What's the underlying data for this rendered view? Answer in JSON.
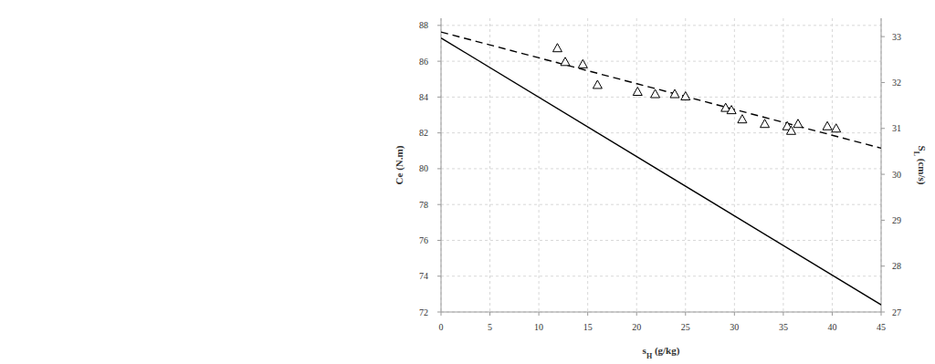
{
  "chart_data": {
    "type": "line",
    "xlabel": "sH (g/kg)",
    "ylabel": "Ce (N.m)",
    "y2label": "SL (cm/s)",
    "xlim": [
      0,
      45
    ],
    "xticks": [
      0,
      5,
      10,
      15,
      20,
      25,
      30,
      35,
      40,
      45
    ],
    "ylim": [
      72,
      88.4
    ],
    "yticks": [
      72,
      74,
      76,
      78,
      80,
      82,
      84,
      86,
      88
    ],
    "y2lim": [
      27,
      33.4
    ],
    "y2ticks": [
      27,
      28,
      29,
      30,
      31,
      32,
      33
    ],
    "grid": true,
    "series": [
      {
        "type": "line",
        "line_style": "solid",
        "color": "#000000",
        "x": [
          0,
          45
        ],
        "values": [
          87.3,
          72.4
        ]
      },
      {
        "type": "line",
        "line_style": "dashed",
        "color": "#000000",
        "axis": "y2",
        "x": [
          0,
          45
        ],
        "values": [
          33.1,
          30.57
        ]
      },
      {
        "type": "scatter",
        "marker": "triangle",
        "color": "#000000",
        "axis": "y2",
        "x": [
          11.9,
          12.7,
          14.5,
          16.0,
          20.1,
          21.9,
          23.9,
          25.0,
          29.1,
          29.7,
          30.8,
          33.1,
          35.4,
          35.8,
          36.5,
          39.5,
          40.4
        ],
        "values": [
          32.75,
          32.45,
          32.4,
          31.95,
          31.8,
          31.75,
          31.75,
          31.7,
          31.45,
          31.4,
          31.2,
          31.1,
          31.05,
          30.95,
          31.1,
          31.05,
          31.0
        ]
      }
    ]
  }
}
